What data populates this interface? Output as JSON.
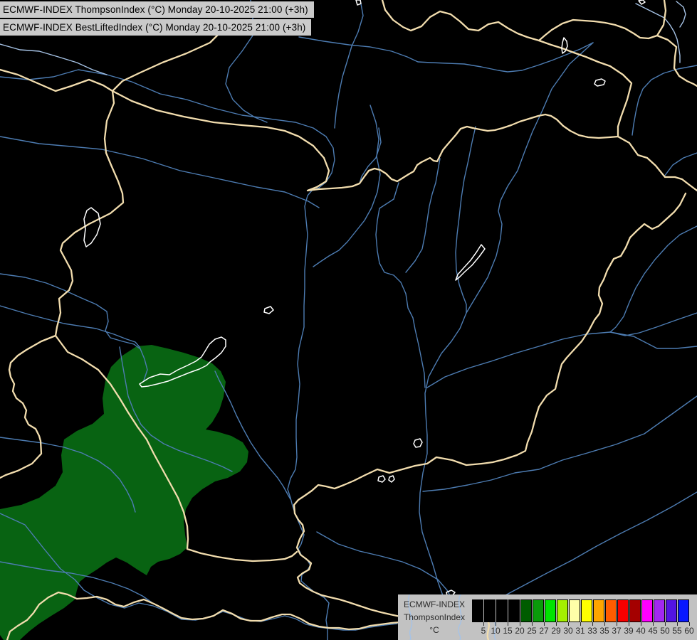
{
  "title_bars": {
    "line1": "ECMWF-INDEX ThompsonIndex (°C) Monday 20-10-2025 21:00 (+3h)",
    "line2": "ECMWF-INDEX BestLiftedIndex (°C) Monday 20-10-2025 21:00 (+3h)"
  },
  "legend": {
    "product": "ECMWF-INDEX",
    "index_name": "ThompsonIndex",
    "unit": "°C",
    "tick_labels": [
      "5",
      "10",
      "15",
      "20",
      "25",
      "27",
      "29",
      "30",
      "31",
      "33",
      "35",
      "37",
      "39",
      "40",
      "45",
      "50",
      "55",
      "60"
    ],
    "swatch_colors": [
      "#000000",
      "#000000",
      "#000000",
      "#000000",
      "#005c00",
      "#0a9b0a",
      "#00e400",
      "#a4f000",
      "#ffffa8",
      "#ffff00",
      "#ffa500",
      "#ff5c00",
      "#f80000",
      "#a40000",
      "#ff00ff",
      "#a228f0",
      "#5214e2",
      "#0818ff"
    ],
    "panel_background": "#c2c2c2",
    "text_color": "#2b2b2b"
  },
  "map": {
    "background": "#000000",
    "border_color": "#f2ddae",
    "river_color": "#4d7cb2",
    "river_light_color": "#a6c3e6",
    "lake_outline_color": "#ffffff",
    "index_region_color": "#086312",
    "titlebar_background": "#cacaca",
    "titlebar_text_color": "#000000"
  }
}
